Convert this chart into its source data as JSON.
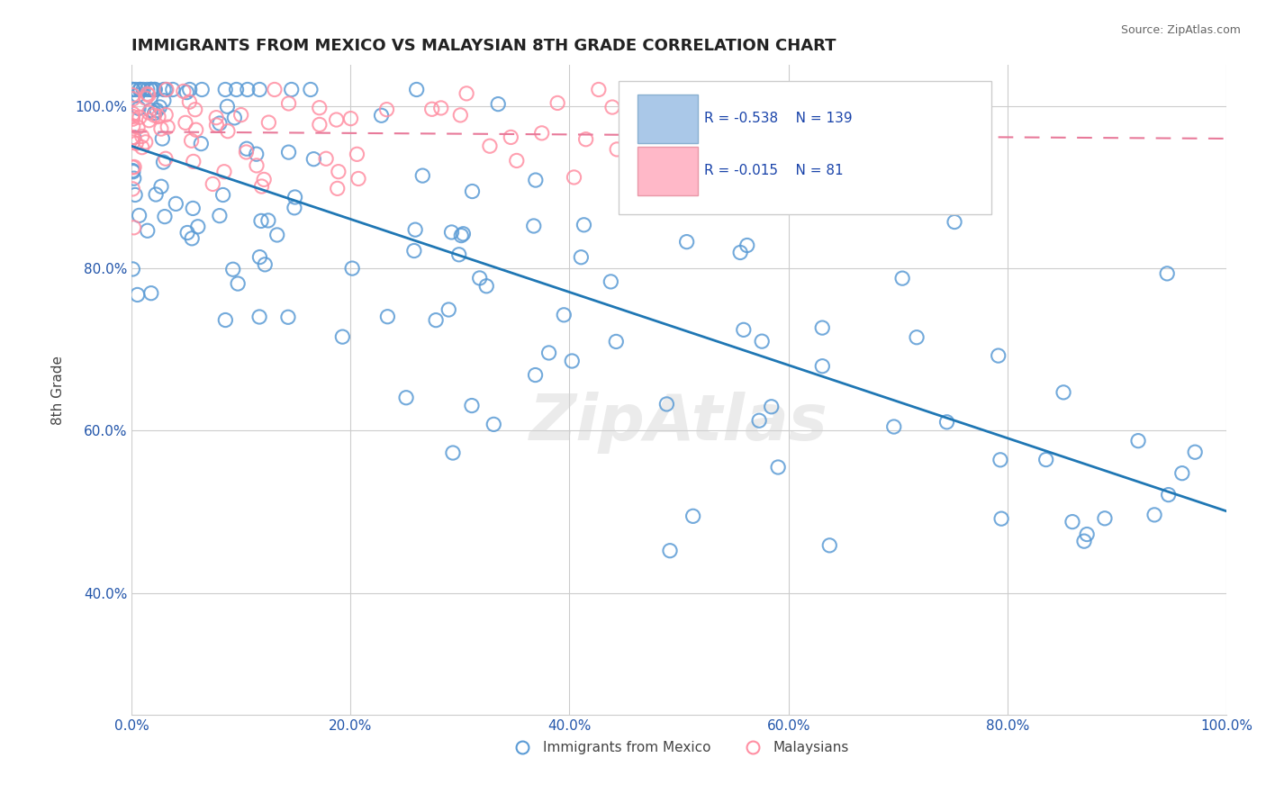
{
  "title": "IMMIGRANTS FROM MEXICO VS MALAYSIAN 8TH GRADE CORRELATION CHART",
  "source_text": "Source: ZipAtlas.com",
  "xlabel": "",
  "ylabel": "8th Grade",
  "xlim": [
    0.0,
    1.0
  ],
  "ylim": [
    0.25,
    1.05
  ],
  "xticks": [
    0.0,
    0.2,
    0.4,
    0.6,
    0.8,
    1.0
  ],
  "xticklabels": [
    "0.0%",
    "20.0%",
    "40.0%",
    "60.0%",
    "80.0%",
    "100.0%"
  ],
  "yticks": [
    0.4,
    0.6,
    0.8,
    1.0
  ],
  "yticklabels": [
    "40.0%",
    "60.0%",
    "80.0%",
    "100.0%"
  ],
  "blue_R": -0.538,
  "blue_N": 139,
  "pink_R": -0.015,
  "pink_N": 81,
  "blue_color": "#5b9bd5",
  "pink_color": "#ff8fa3",
  "blue_line_color": "#1f77b4",
  "pink_line_color": "#e87a9a",
  "legend_label_blue": "Immigrants from Mexico",
  "legend_label_pink": "Malaysians",
  "watermark": "ZipAtlas",
  "background_color": "#ffffff",
  "grid_color": "#cccccc"
}
